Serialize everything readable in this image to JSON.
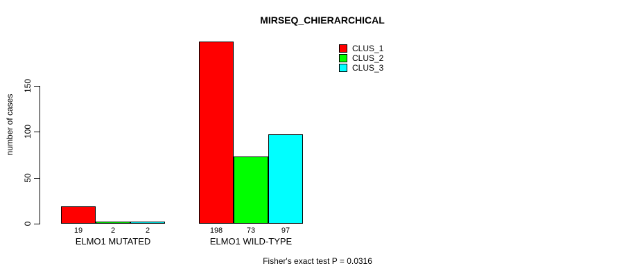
{
  "chart_data": {
    "type": "bar",
    "title": "MIRSEQ_CHIERARCHICAL",
    "ylabel": "number of cases",
    "xlabel": "",
    "categories": [
      "ELMO1 MUTATED",
      "ELMO1 WILD-TYPE"
    ],
    "series": [
      {
        "name": "CLUS_1",
        "color": "#ff0000",
        "values": [
          19,
          198
        ]
      },
      {
        "name": "CLUS_2",
        "color": "#00ff00",
        "values": [
          2,
          73
        ]
      },
      {
        "name": "CLUS_3",
        "color": "#00ffff",
        "values": [
          2,
          97
        ]
      }
    ],
    "bar_value_labels": [
      [
        "19",
        "2",
        "2"
      ],
      [
        "198",
        "73",
        "97"
      ]
    ],
    "yticks": [
      "0",
      "50",
      "100",
      "150"
    ],
    "ytick_values": [
      0,
      50,
      100,
      150
    ],
    "ylim": [
      0,
      198
    ],
    "grid": false,
    "legend_position": "top-right",
    "legend_entries": [
      "CLUS_1",
      "CLUS_2",
      "CLUS_3"
    ],
    "annotation": "Fisher's exact test P = 0.0316",
    "bar_border_color": "#000000",
    "background_color": "#ffffff",
    "text_color": "#000000"
  }
}
